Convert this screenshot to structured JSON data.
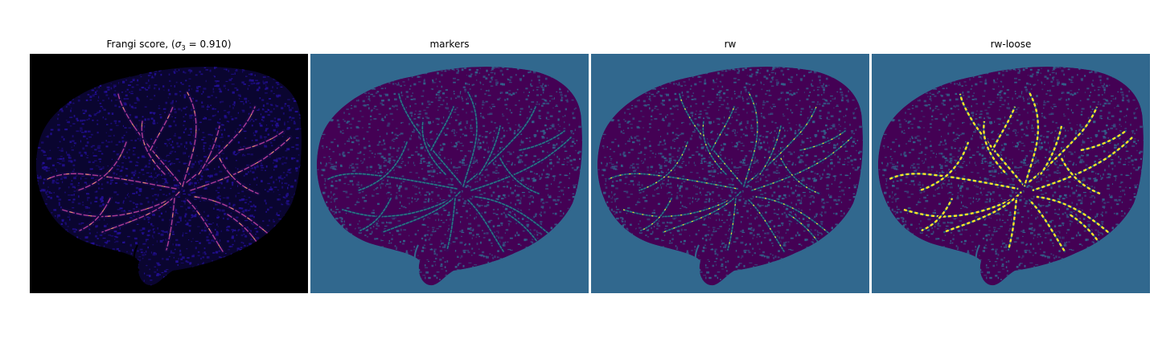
{
  "figure": {
    "panels": [
      {
        "id": "frangi",
        "title_prefix": "Frangi score, (",
        "title_sigma": "σ",
        "title_sub": "3",
        "title_suffix": " = 0.910)",
        "colormap": "plasma",
        "background_color": "#000000",
        "texture_color": "#24109a",
        "vessel_color": "#c040a0",
        "highlight_color": "#f0a060"
      },
      {
        "id": "markers",
        "title": "markers",
        "colormap": "viridis",
        "background_color": "#31688e",
        "texture_color": "#440154",
        "vessel_color": "#21918c"
      },
      {
        "id": "rw",
        "title": "rw",
        "colormap": "viridis",
        "background_color": "#31688e",
        "texture_color": "#440154",
        "vessel_color": "#21918c",
        "highlight_color": "#fde725"
      },
      {
        "id": "rw-loose",
        "title": "rw-loose",
        "colormap": "viridis",
        "background_color": "#31688e",
        "texture_color": "#440154",
        "vessel_color": "#21918c",
        "highlight_color": "#fde725"
      }
    ]
  }
}
